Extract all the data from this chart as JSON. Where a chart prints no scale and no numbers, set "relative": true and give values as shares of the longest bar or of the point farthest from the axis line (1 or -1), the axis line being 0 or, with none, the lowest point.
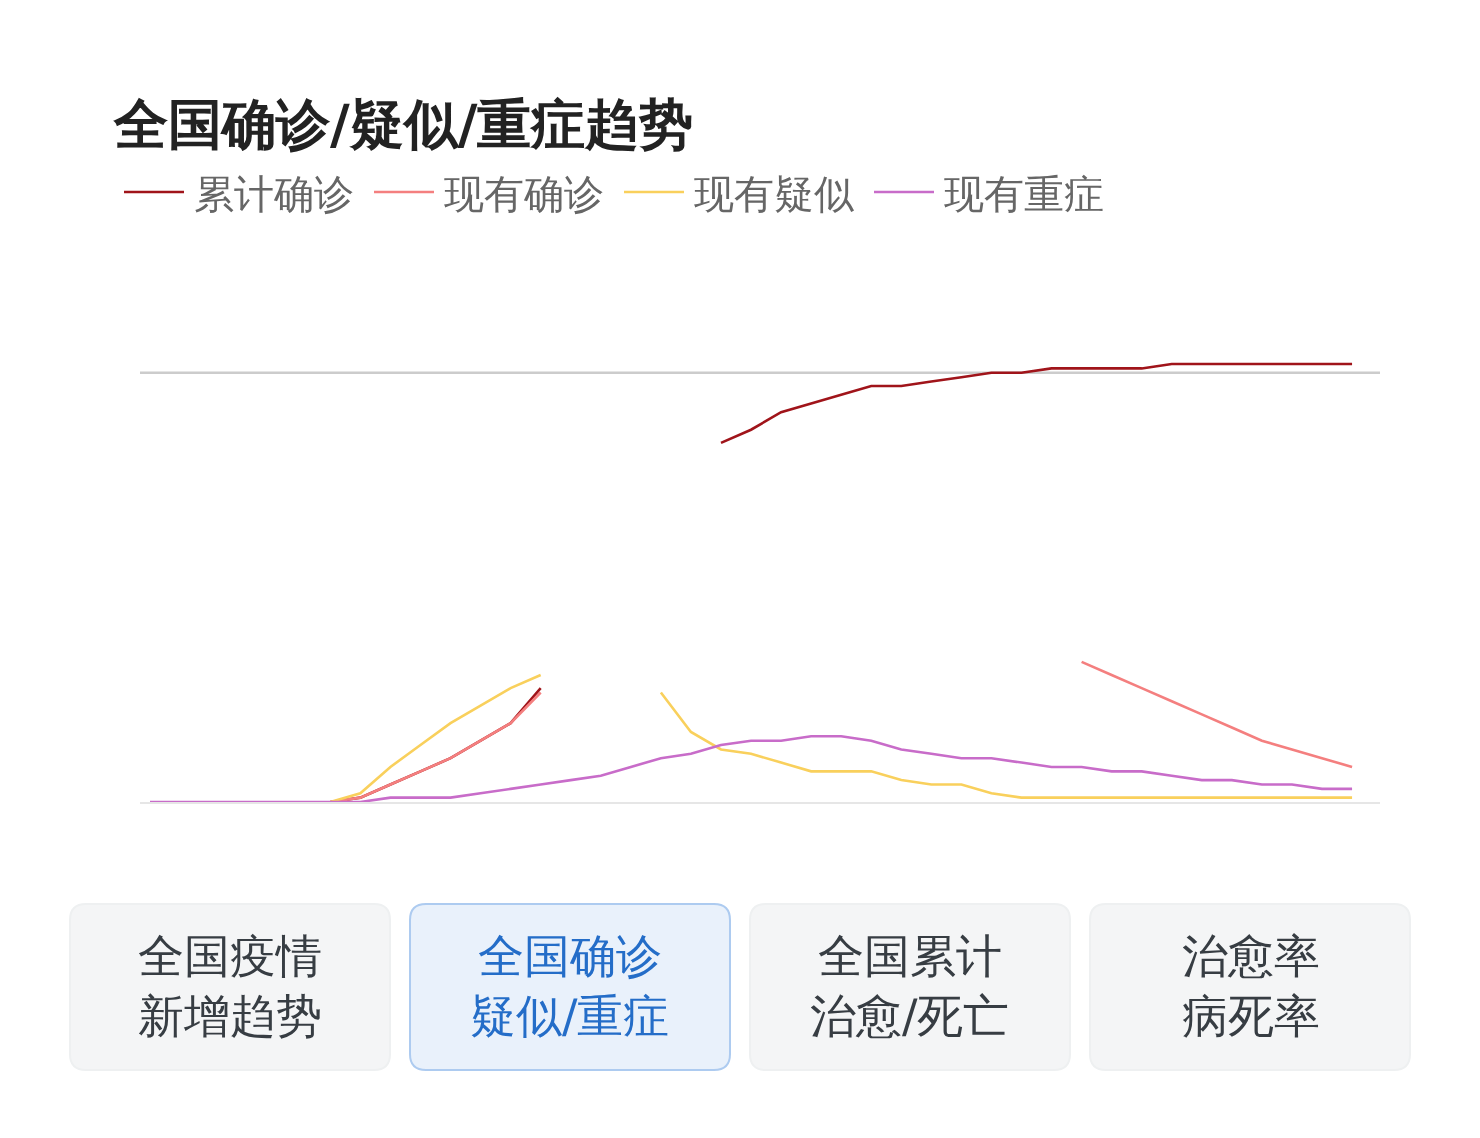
{
  "chart_data": [
    {
      "type": "line",
      "title": "全国确诊/疑似/重症趋势",
      "relative": true,
      "legend": "top left",
      "marker": "none",
      "line_style": "solid",
      "categories": [
        null,
        null,
        null,
        null,
        null,
        null,
        null,
        null,
        null,
        null,
        null,
        null,
        null,
        null,
        null,
        null,
        null,
        null,
        null,
        null,
        null,
        null,
        null,
        null,
        null,
        null,
        null,
        null,
        null,
        null,
        null,
        null,
        null,
        null,
        null,
        null,
        null,
        null,
        null,
        null,
        null
      ],
      "series": [
        {
          "name": "累计确诊",
          "color": "#a0141a",
          "values": [
            null,
            null,
            null,
            null,
            null,
            null,
            0,
            0.01,
            0.04,
            0.07,
            0.1,
            0.14,
            0.18,
            0.26,
            null,
            null,
            null,
            null,
            null,
            0.82,
            0.85,
            0.89,
            0.91,
            0.93,
            0.95,
            0.95,
            0.96,
            0.97,
            0.98,
            0.98,
            0.99,
            0.99,
            0.99,
            0.99,
            1.0,
            1.0,
            1.0,
            1.0,
            1.0,
            1.0,
            1.0
          ]
        },
        {
          "name": "现有确诊",
          "color": "#f47f7f",
          "values": [
            null,
            null,
            null,
            null,
            null,
            null,
            0,
            0.01,
            0.04,
            0.07,
            0.1,
            0.14,
            0.18,
            0.25,
            null,
            null,
            null,
            null,
            null,
            null,
            null,
            null,
            null,
            null,
            null,
            null,
            null,
            null,
            null,
            null,
            null,
            0.32,
            0.29,
            0.26,
            0.23,
            0.2,
            0.17,
            0.14,
            0.12,
            0.1,
            0.08
          ]
        },
        {
          "name": "现有疑似",
          "color": "#f9d05c",
          "values": [
            null,
            null,
            null,
            null,
            null,
            null,
            0,
            0.02,
            0.08,
            0.13,
            0.18,
            0.22,
            0.26,
            0.29,
            null,
            null,
            null,
            0.25,
            0.16,
            0.12,
            0.11,
            0.09,
            0.07,
            0.07,
            0.07,
            0.05,
            0.04,
            0.04,
            0.02,
            0.01,
            0.01,
            0.01,
            0.01,
            0.01,
            0.01,
            0.01,
            0.01,
            0.01,
            0.01,
            0.01,
            0.01
          ]
        },
        {
          "name": "现有重症",
          "color": "#c86cc9",
          "values": [
            0,
            0,
            0,
            0,
            0,
            0,
            0,
            0,
            0.01,
            0.01,
            0.01,
            0.02,
            0.03,
            0.04,
            0.05,
            0.06,
            0.08,
            0.1,
            0.11,
            0.13,
            0.14,
            0.14,
            0.15,
            0.15,
            0.14,
            0.12,
            0.11,
            0.1,
            0.1,
            0.09,
            0.08,
            0.08,
            0.07,
            0.07,
            0.06,
            0.05,
            0.05,
            0.04,
            0.04,
            0.03,
            0.03
          ]
        }
      ],
      "ref_lines": [
        {
          "axis": "y",
          "value": 0.98,
          "color": "#cccccc"
        }
      ]
    },
    {
      "type": "other",
      "categories": [
        "全国疫情新增趋势",
        "全国确诊疑似/重症",
        "全国累计治愈/死亡",
        "治愈率病死率"
      ],
      "colors": [
        "#f4f5f6",
        "#e9f1fb",
        "#f4f5f6",
        "#f4f5f6"
      ]
    }
  ]
}
